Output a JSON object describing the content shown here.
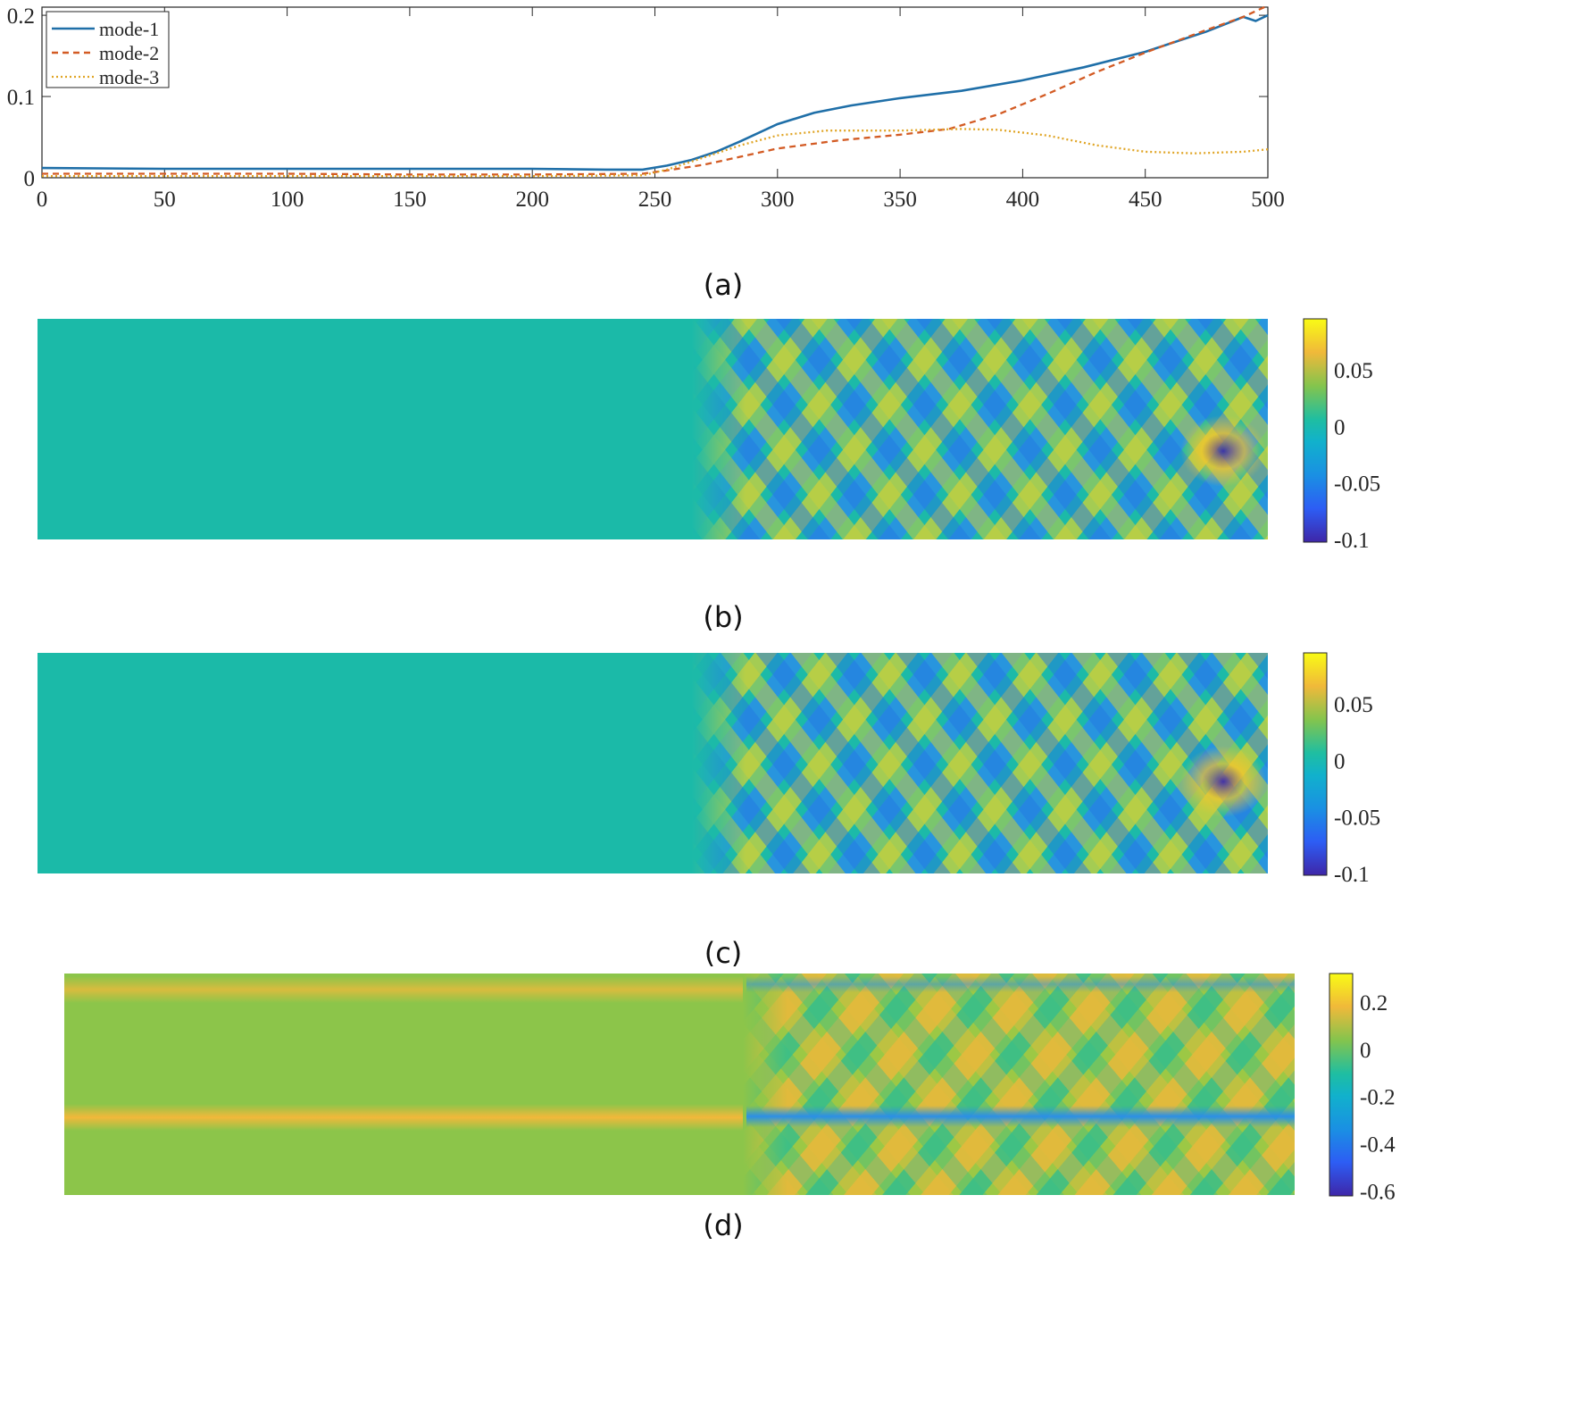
{
  "chart_data": [
    {
      "type": "line",
      "caption": "(a)",
      "xlim": [
        0,
        500
      ],
      "ylim": [
        0,
        0.21
      ],
      "xticks": [
        "0",
        "50",
        "100",
        "150",
        "200",
        "250",
        "300",
        "350",
        "400",
        "450",
        "500"
      ],
      "yticks": [
        "0",
        "0.1",
        "0.2"
      ],
      "legend_position": "top-left",
      "series": [
        {
          "name": "mode-1",
          "style": "solid",
          "color": "#1f6fa8",
          "x": [
            0,
            50,
            100,
            150,
            200,
            230,
            245,
            255,
            265,
            275,
            285,
            300,
            315,
            330,
            350,
            375,
            400,
            425,
            450,
            475,
            485,
            490,
            495,
            500
          ],
          "y": [
            0.012,
            0.011,
            0.011,
            0.011,
            0.011,
            0.01,
            0.01,
            0.015,
            0.022,
            0.032,
            0.045,
            0.066,
            0.08,
            0.089,
            0.098,
            0.107,
            0.12,
            0.136,
            0.155,
            0.18,
            0.192,
            0.198,
            0.193,
            0.2
          ]
        },
        {
          "name": "mode-2",
          "style": "dashed",
          "color": "#d35b24",
          "x": [
            0,
            50,
            100,
            150,
            200,
            245,
            255,
            270,
            285,
            300,
            325,
            350,
            370,
            390,
            410,
            430,
            450,
            475,
            490,
            500
          ],
          "y": [
            0.005,
            0.005,
            0.005,
            0.004,
            0.004,
            0.005,
            0.009,
            0.016,
            0.026,
            0.036,
            0.046,
            0.053,
            0.06,
            0.078,
            0.103,
            0.13,
            0.154,
            0.182,
            0.198,
            0.212
          ]
        },
        {
          "name": "mode-3",
          "style": "dotted",
          "color": "#e0a526",
          "x": [
            0,
            50,
            100,
            150,
            200,
            245,
            255,
            270,
            285,
            300,
            320,
            350,
            375,
            390,
            410,
            430,
            450,
            470,
            490,
            500
          ],
          "y": [
            0.002,
            0.002,
            0.002,
            0.002,
            0.002,
            0.003,
            0.01,
            0.025,
            0.04,
            0.052,
            0.058,
            0.058,
            0.06,
            0.059,
            0.052,
            0.04,
            0.032,
            0.03,
            0.032,
            0.035
          ]
        }
      ]
    },
    {
      "type": "heatmap",
      "caption": "(b)",
      "colorbar_ticks": [
        "0.05",
        "0",
        "-0.05",
        "-0.1"
      ],
      "colorbar_range": [
        -0.1,
        0.095
      ]
    },
    {
      "type": "heatmap",
      "caption": "(c)",
      "colorbar_ticks": [
        "0.05",
        "0",
        "-0.05",
        "-0.1"
      ],
      "colorbar_range": [
        -0.1,
        0.095
      ]
    },
    {
      "type": "heatmap",
      "caption": "(d)",
      "colorbar_ticks": [
        "0.2",
        "0",
        "-0.2",
        "-0.4",
        "-0.6"
      ],
      "colorbar_range": [
        -0.62,
        0.32
      ]
    }
  ],
  "colors": {
    "parula_low": "#3e26a8",
    "parula_mid": "#1cbaa8",
    "parula_high": "#f9fb15"
  }
}
